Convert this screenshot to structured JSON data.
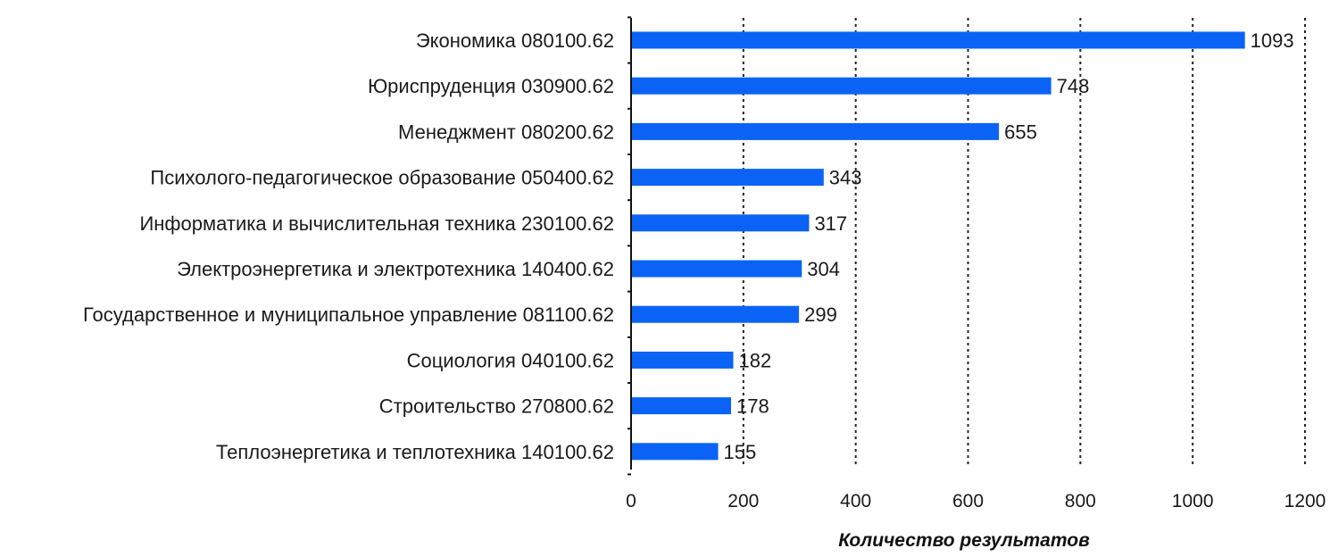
{
  "chart_data": {
    "type": "bar",
    "orientation": "horizontal",
    "categories": [
      "Экономика 080100.62",
      "Юриспруденция 030900.62",
      "Менеджмент 080200.62",
      "Психолого-педагогическое образование 050400.62",
      "Информатика и вычислительная техника 230100.62",
      "Электроэнергетика и электротехника 140400.62",
      "Государственное и муниципальное управление 081100.62",
      "Социология 040100.62",
      "Строительство 270800.62",
      "Теплоэнергетика и теплотехника 140100.62"
    ],
    "values": [
      1093,
      748,
      655,
      343,
      317,
      304,
      299,
      182,
      178,
      155
    ],
    "data_labels": [
      "1093",
      "748",
      "655",
      "343",
      "317",
      "304",
      "299",
      "182",
      "178",
      "155"
    ],
    "xlabel": "Количество результатов",
    "ylabel": "",
    "title": "",
    "xlim": [
      0,
      1200
    ],
    "xticks": [
      0,
      200,
      400,
      600,
      800,
      1000,
      1200
    ],
    "xtick_labels": [
      "0",
      "200",
      "400",
      "600",
      "800",
      "1000",
      "1200"
    ],
    "grid": "vertical dotted",
    "legend": "none",
    "bar_color": "#0b63f6"
  }
}
